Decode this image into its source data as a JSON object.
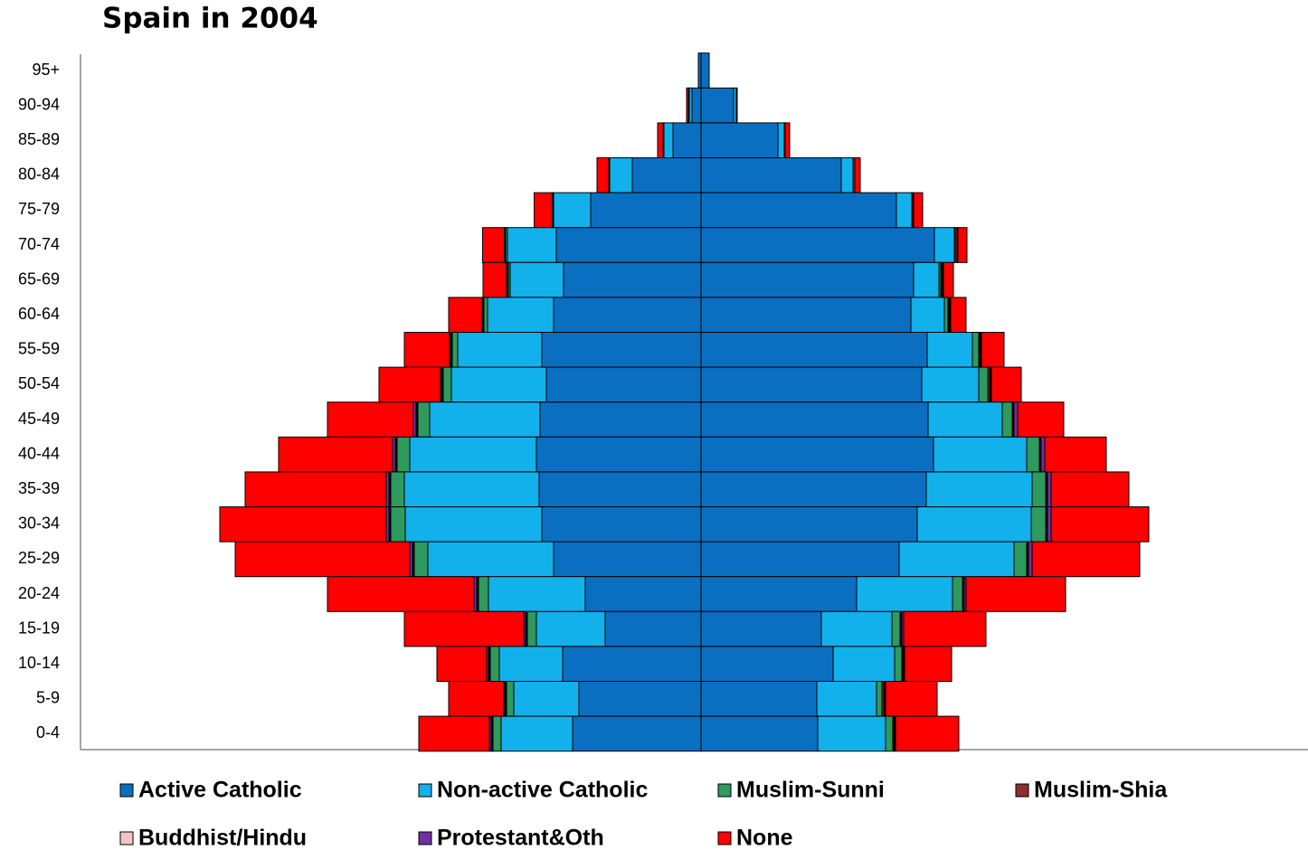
{
  "chart_data": {
    "type": "pyramid",
    "title": "Spain in 2004",
    "categories": [
      "95+",
      "90-94",
      "85-89",
      "80-84",
      "75-79",
      "70-74",
      "65-69",
      "60-64",
      "55-59",
      "50-54",
      "45-49",
      "40-44",
      "35-39",
      "30-34",
      "25-29",
      "20-24",
      "15-19",
      "10-14",
      "5-9",
      "0-4"
    ],
    "series": [
      {
        "name": "Active Catholic",
        "color": "#0b6fc1",
        "left": [
          3,
          10,
          31,
          76,
          122,
          160,
          152,
          163,
          176,
          171,
          178,
          182,
          179,
          176,
          163,
          128,
          106,
          153,
          135,
          142
        ],
        "right": [
          9,
          36,
          85,
          155,
          216,
          258,
          235,
          232,
          250,
          244,
          251,
          257,
          249,
          239,
          219,
          172,
          133,
          146,
          128,
          129
        ]
      },
      {
        "name": "Non-active Catholic",
        "color": "#12b1ec",
        "left": [
          0,
          3,
          10,
          25,
          41,
          54,
          59,
          73,
          93,
          105,
          122,
          140,
          149,
          151,
          139,
          107,
          76,
          70,
          72,
          79
        ],
        "right": [
          0,
          3,
          7,
          13,
          17,
          22,
          28,
          37,
          50,
          63,
          82,
          103,
          117,
          126,
          127,
          106,
          78,
          68,
          66,
          75
        ]
      },
      {
        "name": "Muslim-Sunni",
        "color": "#2e9a5e",
        "left": [
          0,
          0,
          0,
          0,
          0.5,
          2,
          2,
          4,
          6,
          9,
          13,
          14,
          15,
          16,
          15,
          11,
          10,
          10,
          8,
          9
        ],
        "right": [
          0,
          0,
          0,
          0,
          0,
          1,
          2,
          4,
          7,
          10,
          11,
          14,
          15,
          16,
          14,
          11,
          9,
          8,
          6,
          8
        ]
      },
      {
        "name": "Muslim-Shia",
        "color": "#8e2f2f",
        "left": [
          0,
          1,
          1,
          1,
          0.5,
          1,
          1,
          1,
          1,
          1,
          1,
          1,
          1,
          1,
          1,
          1,
          1,
          1,
          1,
          1
        ],
        "right": [
          0,
          1,
          1,
          2,
          1,
          2,
          1,
          1,
          1,
          2,
          1,
          1,
          1,
          1,
          1,
          1,
          1,
          1,
          2,
          1
        ]
      },
      {
        "name": "Buddhist/Hindu",
        "color": "#f2c4c4",
        "left": [
          0,
          0,
          0,
          0,
          0,
          0,
          0.5,
          0.5,
          1,
          1,
          1,
          1,
          1,
          1,
          1,
          1,
          1,
          1,
          1,
          1
        ],
        "right": [
          0,
          0,
          0,
          0,
          0,
          0,
          1,
          1,
          1,
          1,
          1,
          1,
          1,
          1,
          1,
          1,
          1,
          1,
          1,
          1
        ]
      },
      {
        "name": "Protestant&Oth",
        "color": "#7030a0",
        "left": [
          0,
          0,
          0,
          0,
          0.5,
          0.5,
          0.5,
          0.5,
          1,
          1,
          3,
          3,
          3,
          3,
          3,
          3,
          2,
          2,
          1,
          2
        ],
        "right": [
          0,
          0,
          0,
          0,
          1,
          1,
          1,
          1,
          1,
          1,
          4,
          4,
          4,
          4,
          4,
          2,
          2,
          1,
          1,
          1
        ]
      },
      {
        "name": "None",
        "color": "#ff0000",
        "left": [
          0,
          2,
          6,
          13,
          20,
          24,
          26,
          37,
          50,
          68,
          95,
          126,
          156,
          184,
          193,
          162,
          132,
          55,
          61,
          78
        ],
        "right": [
          0,
          0,
          5,
          6,
          10,
          10,
          11,
          17,
          25,
          33,
          51,
          68,
          86,
          108,
          119,
          110,
          91,
          52,
          57,
          70
        ]
      }
    ]
  }
}
